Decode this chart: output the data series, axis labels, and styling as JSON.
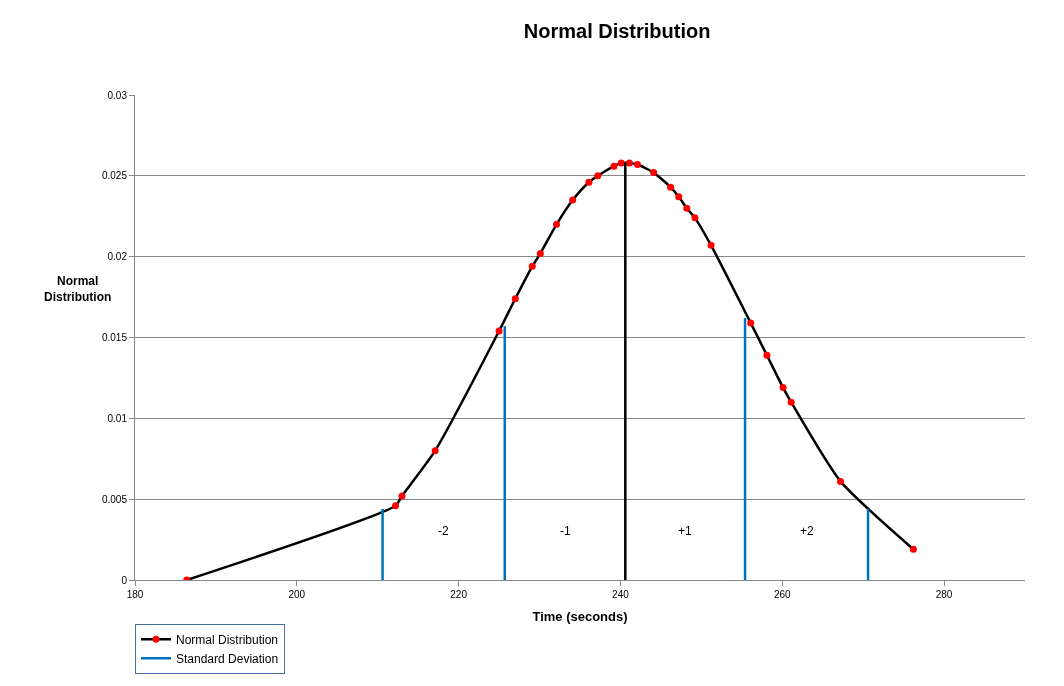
{
  "chart_data": {
    "type": "line",
    "title": "Normal Distribution",
    "xlabel": "Time (seconds)",
    "ylabel": "Normal Distribution",
    "xlim": [
      180,
      290
    ],
    "xticks": [
      180,
      200,
      220,
      240,
      260,
      280
    ],
    "ylim": [
      0,
      0.03
    ],
    "yticks": [
      0,
      0.005,
      0.01,
      0.015,
      0.02,
      0.025,
      0.03
    ],
    "grid": "y",
    "legend": "bottom left",
    "series": [
      {
        "name": "Normal Distribution",
        "color": "#000000",
        "marker": "circle",
        "colors": [
          "#ff0000",
          "#ff0000",
          "#ff0000",
          "#ff0000",
          "#ff0000",
          "#ff0000",
          "#ff0000",
          "#ff0000",
          "#ff0000",
          "#ff0000",
          "#ff0000",
          "#ff0000",
          "#ff0000",
          "#ff0000",
          "#ff0000",
          "#ff0000",
          "#ff0000",
          "#ff0000",
          "#ff0000",
          "#ff0000",
          "#ff0000",
          "#ff0000",
          "#ff0000",
          "#ff0000",
          "#ff0000",
          "#ff0000",
          "#ff0000",
          "#ff0000"
        ],
        "x": [
          186.4,
          212.2,
          213,
          217.1,
          225,
          227,
          229.1,
          230.1,
          232.1,
          234.1,
          236.1,
          237.2,
          239.2,
          240.1,
          241.1,
          242.1,
          244.1,
          246.2,
          247.2,
          248.2,
          249.2,
          251.2,
          256.1,
          258.1,
          260.1,
          261.1,
          267.2,
          276.2
        ],
        "values": [
          0,
          0.0046,
          0.0052,
          0.008,
          0.0154,
          0.0174,
          0.0194,
          0.0202,
          0.022,
          0.0235,
          0.0246,
          0.025,
          0.0256,
          0.0258,
          0.0258,
          0.0257,
          0.0252,
          0.0243,
          0.0237,
          0.023,
          0.0224,
          0.0207,
          0.0159,
          0.0139,
          0.0119,
          0.011,
          0.0061,
          0.0019
        ]
      },
      {
        "name": "Standard Deviation",
        "color": "#0070c0",
        "x": [
          210.6,
          210.6,
          null,
          225.7,
          225.7,
          null,
          255.4,
          255.4,
          null,
          270.6,
          270.6
        ],
        "values": [
          0,
          0.0044,
          null,
          0,
          0.0157,
          null,
          0,
          0.0162,
          null,
          0,
          0.0044
        ]
      },
      {
        "color": "#000000",
        "x": [
          240.6,
          240.6
        ],
        "values": [
          0,
          0.0258
        ]
      }
    ],
    "annotations": [
      "-2",
      "-1",
      "+1",
      "+2"
    ]
  }
}
